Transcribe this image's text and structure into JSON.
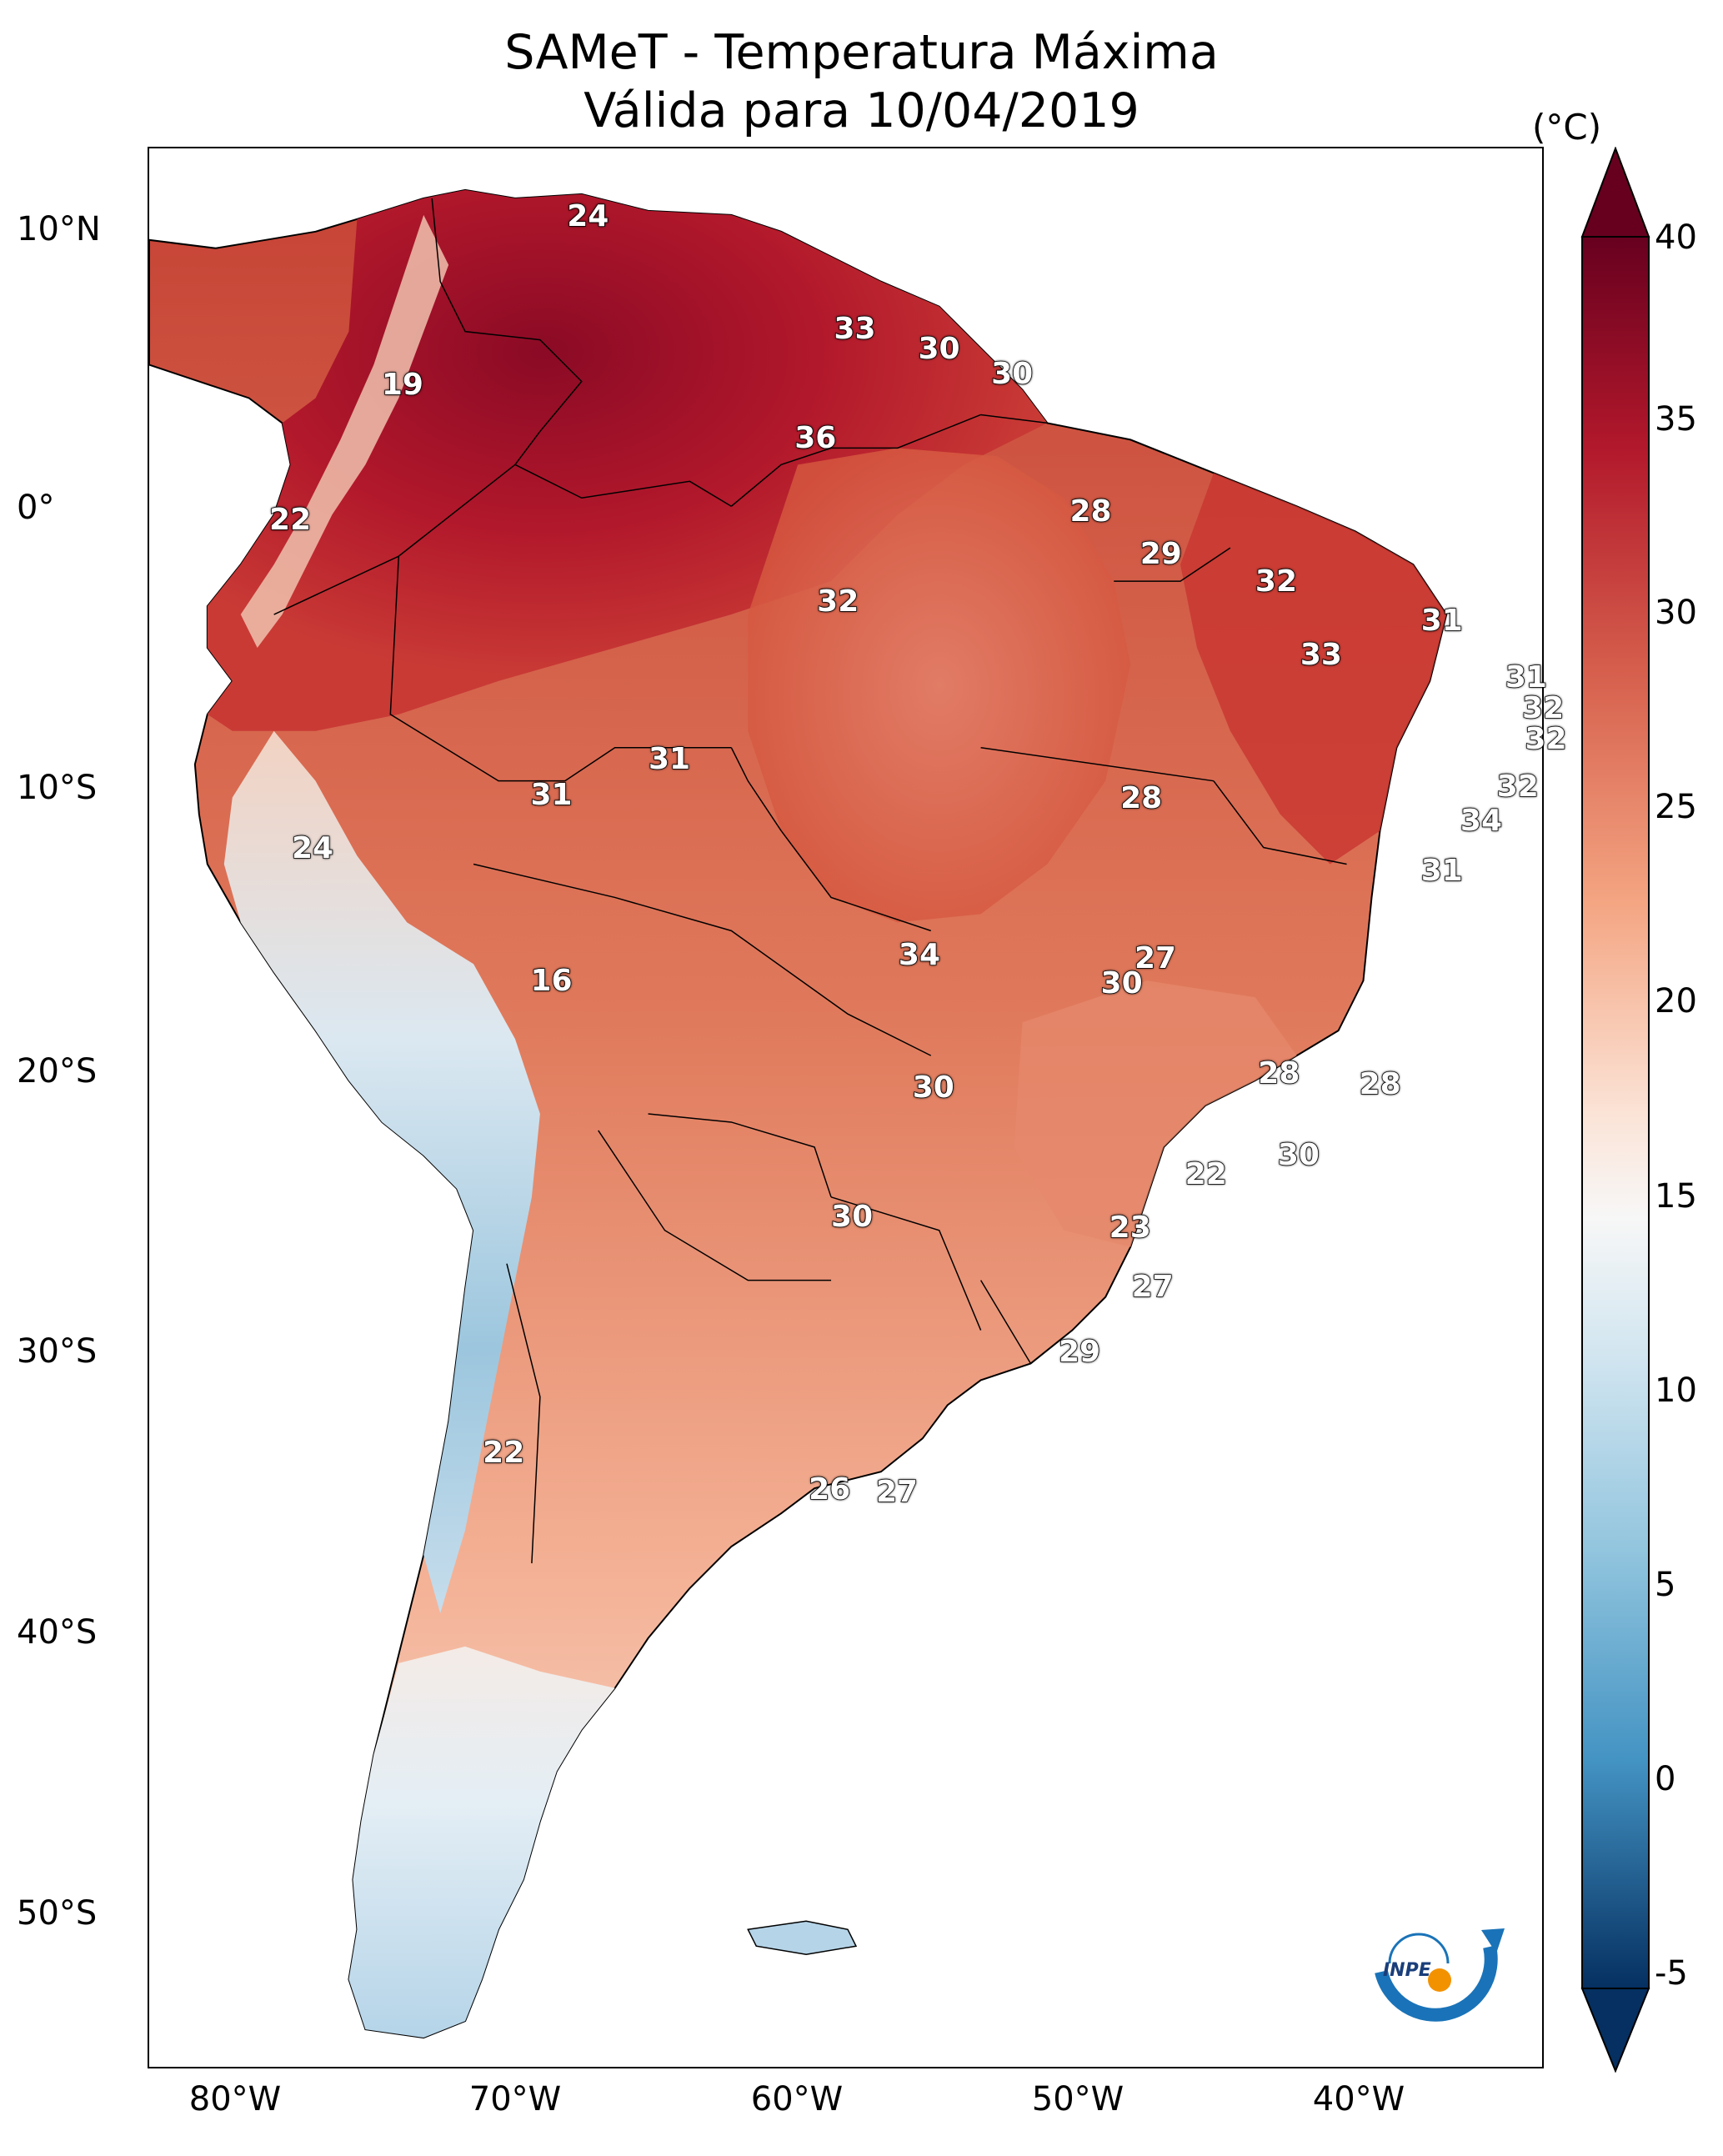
{
  "title": {
    "line1": "SAMeT - Temperatura Máxima",
    "line2": "Válida para 10/04/2019"
  },
  "axes": {
    "lat_ticks": [
      "10°N",
      "0°",
      "10°S",
      "20°S",
      "30°S",
      "40°S",
      "50°S"
    ],
    "lon_ticks": [
      "80°W",
      "70°W",
      "60°W",
      "50°W",
      "40°W"
    ]
  },
  "colorbar": {
    "unit": "(°C)",
    "ticks": [
      "40",
      "35",
      "30",
      "25",
      "20",
      "15",
      "10",
      "5",
      "0",
      "-5"
    ],
    "min": -5,
    "max": 40,
    "colors": {
      "hot": "#67001f",
      "warm": "#d6604d",
      "mild": "#f4a582",
      "neutral": "#f7f7f7",
      "cool": "#92c5de",
      "cold": "#2166ac",
      "coldest": "#053061"
    }
  },
  "contour_labels": [
    {
      "text": "24",
      "lon": -67.5,
      "lat": 10.5
    },
    {
      "text": "33",
      "lon": -58.0,
      "lat": 6.5
    },
    {
      "text": "30",
      "lon": -55.0,
      "lat": 5.8
    },
    {
      "text": "30",
      "lon": -52.4,
      "lat": 4.9
    },
    {
      "text": "19",
      "lon": -74.1,
      "lat": 4.5
    },
    {
      "text": "36",
      "lon": -59.4,
      "lat": 2.6
    },
    {
      "text": "28",
      "lon": -49.6,
      "lat": 0.0
    },
    {
      "text": "22",
      "lon": -78.1,
      "lat": -0.3
    },
    {
      "text": "29",
      "lon": -47.1,
      "lat": -1.5
    },
    {
      "text": "32",
      "lon": -43.0,
      "lat": -2.5
    },
    {
      "text": "32",
      "lon": -58.6,
      "lat": -3.2
    },
    {
      "text": "31",
      "lon": -37.1,
      "lat": -3.9
    },
    {
      "text": "33",
      "lon": -41.4,
      "lat": -5.1
    },
    {
      "text": "31",
      "lon": -34.1,
      "lat": -5.9
    },
    {
      "text": "32",
      "lon": -33.5,
      "lat": -7.0
    },
    {
      "text": "32",
      "lon": -33.4,
      "lat": -8.1
    },
    {
      "text": "31",
      "lon": -64.6,
      "lat": -8.8
    },
    {
      "text": "32",
      "lon": -34.4,
      "lat": -9.8
    },
    {
      "text": "31",
      "lon": -68.8,
      "lat": -10.1
    },
    {
      "text": "28",
      "lon": -47.8,
      "lat": -10.2
    },
    {
      "text": "34",
      "lon": -35.7,
      "lat": -11.0
    },
    {
      "text": "24",
      "lon": -77.3,
      "lat": -12.0
    },
    {
      "text": "31",
      "lon": -37.1,
      "lat": -12.8
    },
    {
      "text": "34",
      "lon": -55.7,
      "lat": -15.8
    },
    {
      "text": "27",
      "lon": -47.3,
      "lat": -15.9
    },
    {
      "text": "16",
      "lon": -68.8,
      "lat": -16.7
    },
    {
      "text": "30",
      "lon": -48.5,
      "lat": -16.8
    },
    {
      "text": "28",
      "lon": -42.9,
      "lat": -20.0
    },
    {
      "text": "28",
      "lon": -39.3,
      "lat": -20.4
    },
    {
      "text": "30",
      "lon": -55.2,
      "lat": -20.5
    },
    {
      "text": "30",
      "lon": -42.2,
      "lat": -22.9
    },
    {
      "text": "22",
      "lon": -45.5,
      "lat": -23.6
    },
    {
      "text": "30",
      "lon": -58.1,
      "lat": -25.1
    },
    {
      "text": "23",
      "lon": -48.2,
      "lat": -25.5
    },
    {
      "text": "27",
      "lon": -47.4,
      "lat": -27.6
    },
    {
      "text": "29",
      "lon": -50.0,
      "lat": -29.9
    },
    {
      "text": "22",
      "lon": -70.5,
      "lat": -33.5
    },
    {
      "text": "26",
      "lon": -58.9,
      "lat": -34.8
    },
    {
      "text": "27",
      "lon": -56.5,
      "lat": -34.9
    }
  ],
  "logo": {
    "text": "INPE"
  }
}
